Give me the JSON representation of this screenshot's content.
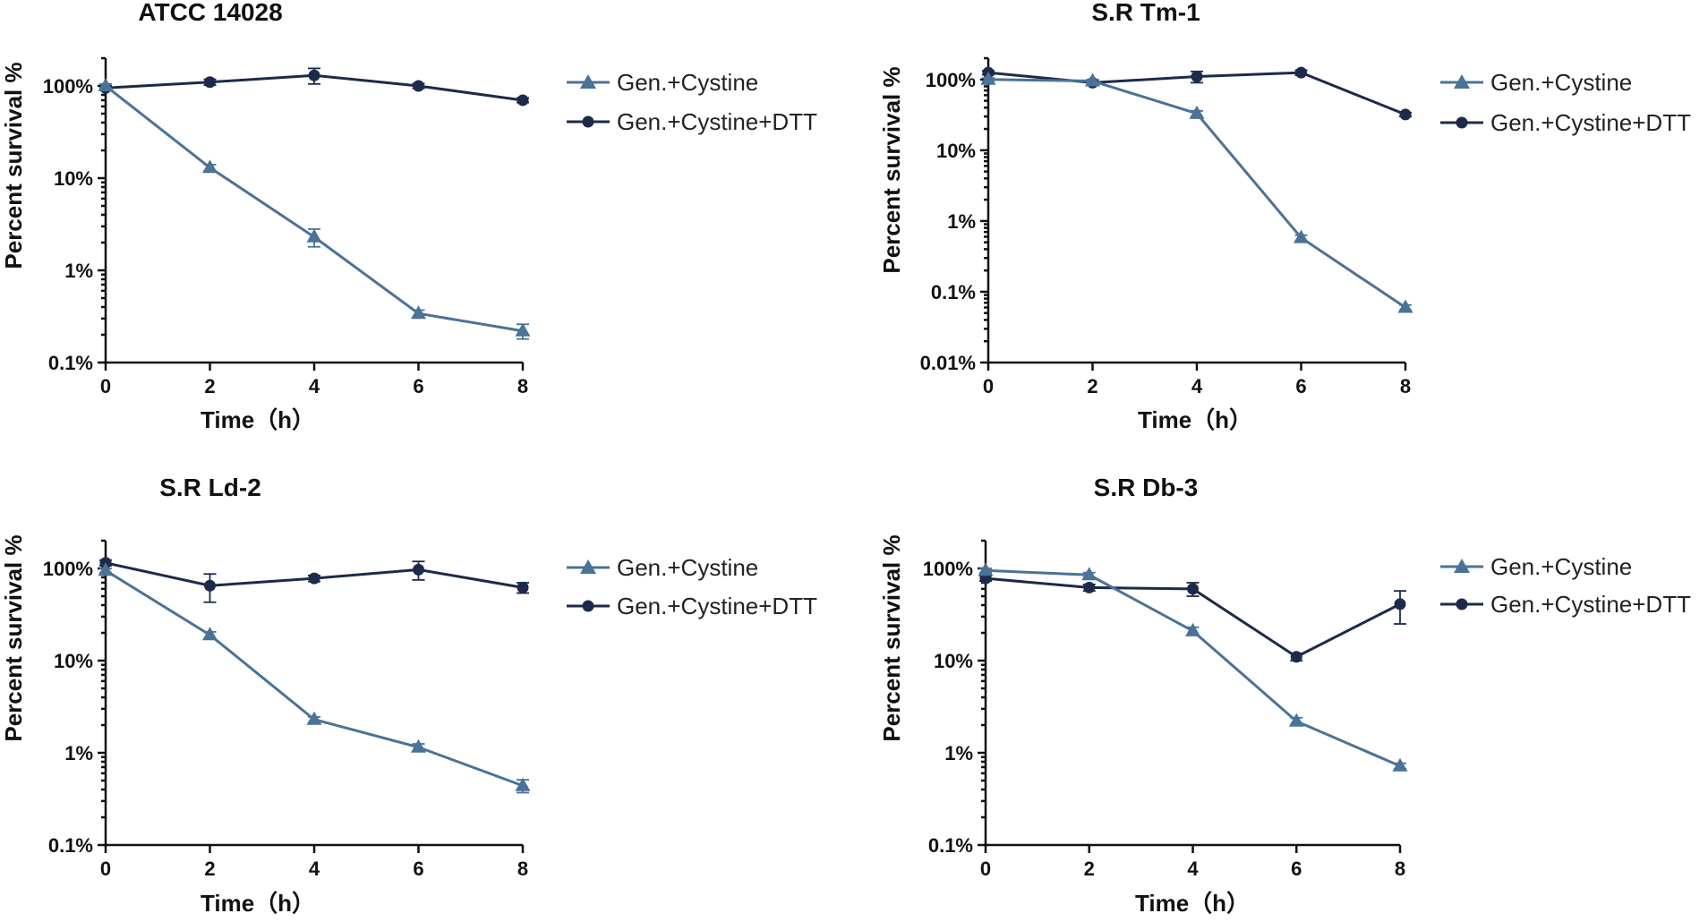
{
  "colors": {
    "cystine": "#4b7297",
    "dtt": "#1d2a4a",
    "axis": "#111111"
  },
  "chart_data": [
    {
      "type": "line",
      "title": "ATCC 14028",
      "xlabel": "Time（h）",
      "ylabel": "Percent survival %",
      "yscale": "log",
      "ylim": [
        0.1,
        200
      ],
      "yticks": [
        0.1,
        1,
        10,
        100
      ],
      "ytick_labels": [
        "0.1%",
        "1%",
        "10%",
        "100%"
      ],
      "xticks": [
        0,
        2,
        4,
        6,
        8
      ],
      "xtick_labels": [
        "0",
        "2",
        "4",
        "6",
        "8"
      ],
      "x": [
        0,
        2,
        4,
        6,
        8
      ],
      "legend": "right",
      "series": [
        {
          "name": "Gen.+Cystine",
          "marker": "triangle",
          "values": [
            100,
            13,
            2.3,
            0.34,
            0.22
          ],
          "errors": [
            5,
            1,
            0.5,
            0.03,
            0.04
          ]
        },
        {
          "name": "Gen.+Cystine+DTT",
          "marker": "circle",
          "values": [
            95,
            110,
            130,
            100,
            70
          ],
          "errors": [
            5,
            8,
            25,
            6,
            4
          ]
        }
      ]
    },
    {
      "type": "line",
      "title": "S.R Tm-1",
      "xlabel": "Time（h）",
      "ylabel": "Percent survival %",
      "yscale": "log",
      "ylim": [
        0.01,
        200
      ],
      "yticks": [
        0.01,
        0.1,
        1,
        10,
        100
      ],
      "ytick_labels": [
        "0.01%",
        "0.1%",
        "1%",
        "10%",
        "100%"
      ],
      "xticks": [
        0,
        2,
        4,
        6,
        8
      ],
      "xtick_labels": [
        "0",
        "2",
        "4",
        "6",
        "8"
      ],
      "x": [
        0,
        2,
        4,
        6,
        8
      ],
      "legend": "right",
      "series": [
        {
          "name": "Gen.+Cystine",
          "marker": "triangle",
          "values": [
            100,
            95,
            33,
            0.58,
            0.06
          ],
          "errors": [
            5,
            5,
            3,
            0.05,
            0.005
          ]
        },
        {
          "name": "Gen.+Cystine+DTT",
          "marker": "circle",
          "values": [
            125,
            90,
            110,
            125,
            32
          ],
          "errors": [
            8,
            6,
            20,
            10,
            2
          ]
        }
      ]
    },
    {
      "type": "line",
      "title": "S.R Ld-2",
      "xlabel": "Time（h）",
      "ylabel": "Percent survival %",
      "yscale": "log",
      "ylim": [
        0.1,
        200
      ],
      "yticks": [
        0.1,
        1,
        10,
        100
      ],
      "ytick_labels": [
        "0.1%",
        "1%",
        "10%",
        "100%"
      ],
      "xticks": [
        0,
        2,
        4,
        6,
        8
      ],
      "xtick_labels": [
        "0",
        "2",
        "4",
        "6",
        "8"
      ],
      "x": [
        0,
        2,
        4,
        6,
        8
      ],
      "legend": "right",
      "series": [
        {
          "name": "Gen.+Cystine",
          "marker": "triangle",
          "values": [
            95,
            19,
            2.3,
            1.15,
            0.44
          ],
          "errors": [
            5,
            1.5,
            0.15,
            0.1,
            0.07
          ]
        },
        {
          "name": "Gen.+Cystine+DTT",
          "marker": "circle",
          "values": [
            115,
            65,
            78,
            97,
            62
          ],
          "errors": [
            8,
            22,
            6,
            22,
            8
          ]
        }
      ]
    },
    {
      "type": "line",
      "title": "S.R Db-3",
      "xlabel": "Time（h）",
      "ylabel": "Percent survival %",
      "yscale": "log",
      "ylim": [
        0.1,
        200
      ],
      "yticks": [
        0.1,
        1,
        10,
        100
      ],
      "ytick_labels": [
        "0.1%",
        "1%",
        "10%",
        "100%"
      ],
      "xticks": [
        0,
        2,
        4,
        6,
        8
      ],
      "xtick_labels": [
        "0",
        "2",
        "4",
        "6",
        "8"
      ],
      "x": [
        0,
        2,
        4,
        6,
        8
      ],
      "legend": "right",
      "series": [
        {
          "name": "Gen.+Cystine",
          "marker": "triangle",
          "values": [
            95,
            85,
            21,
            2.2,
            0.72
          ],
          "errors": [
            5,
            5,
            2,
            0.2,
            0.05
          ]
        },
        {
          "name": "Gen.+Cystine+DTT",
          "marker": "circle",
          "values": [
            78,
            62,
            60,
            11,
            41
          ],
          "errors": [
            5,
            5,
            10,
            1,
            16
          ]
        }
      ]
    }
  ]
}
